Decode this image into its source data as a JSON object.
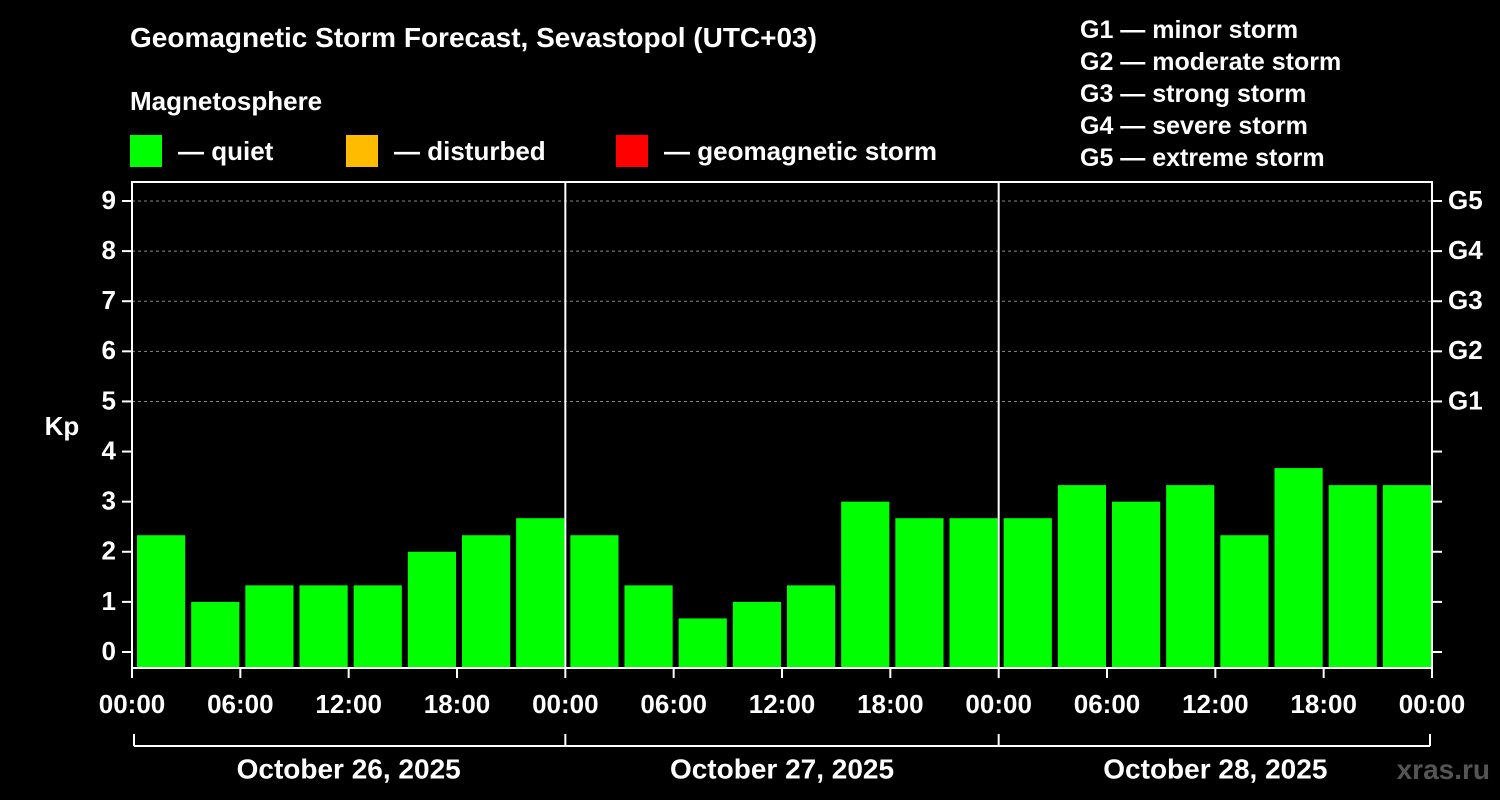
{
  "header": {
    "title": "Geomagnetic Storm Forecast, Sevastopol (UTC+03)",
    "subtitle": "Magnetosphere"
  },
  "legend": [
    {
      "label": "— quiet",
      "color": "#00ff00"
    },
    {
      "label": "— disturbed",
      "color": "#ffbb00"
    },
    {
      "label": "— geomagnetic storm",
      "color": "#ff0000"
    }
  ],
  "storm_scale": [
    "G1 — minor storm",
    "G2 — moderate storm",
    "G3 — strong storm",
    "G4 — severe storm",
    "G5 — extreme storm"
  ],
  "watermark": "xras.ru",
  "chart_data": {
    "type": "bar",
    "ylabel": "Kp",
    "ylim": [
      0,
      9
    ],
    "yticks": [
      "0",
      "1",
      "2",
      "3",
      "4",
      "5",
      "6",
      "7",
      "8",
      "9"
    ],
    "right_axis_labels": [
      {
        "kp": 5,
        "label": "G1"
      },
      {
        "kp": 6,
        "label": "G2"
      },
      {
        "kp": 7,
        "label": "G3"
      },
      {
        "kp": 8,
        "label": "G4"
      },
      {
        "kp": 9,
        "label": "G5"
      }
    ],
    "xtick_labels": [
      "00:00",
      "06:00",
      "12:00",
      "18:00",
      "00:00",
      "06:00",
      "12:00",
      "18:00",
      "00:00",
      "06:00",
      "12:00",
      "18:00",
      "00:00"
    ],
    "days": [
      "October 26, 2025",
      "October 27, 2025",
      "October 28, 2025"
    ],
    "values": [
      2.33,
      1.0,
      1.33,
      1.33,
      1.33,
      2.0,
      2.33,
      2.67,
      2.33,
      1.33,
      0.67,
      1.0,
      1.33,
      3.0,
      2.67,
      2.67,
      2.67,
      3.33,
      3.0,
      3.33,
      2.33,
      3.67,
      3.33,
      3.33
    ],
    "bar_color": "#00ff00",
    "grid": true
  }
}
